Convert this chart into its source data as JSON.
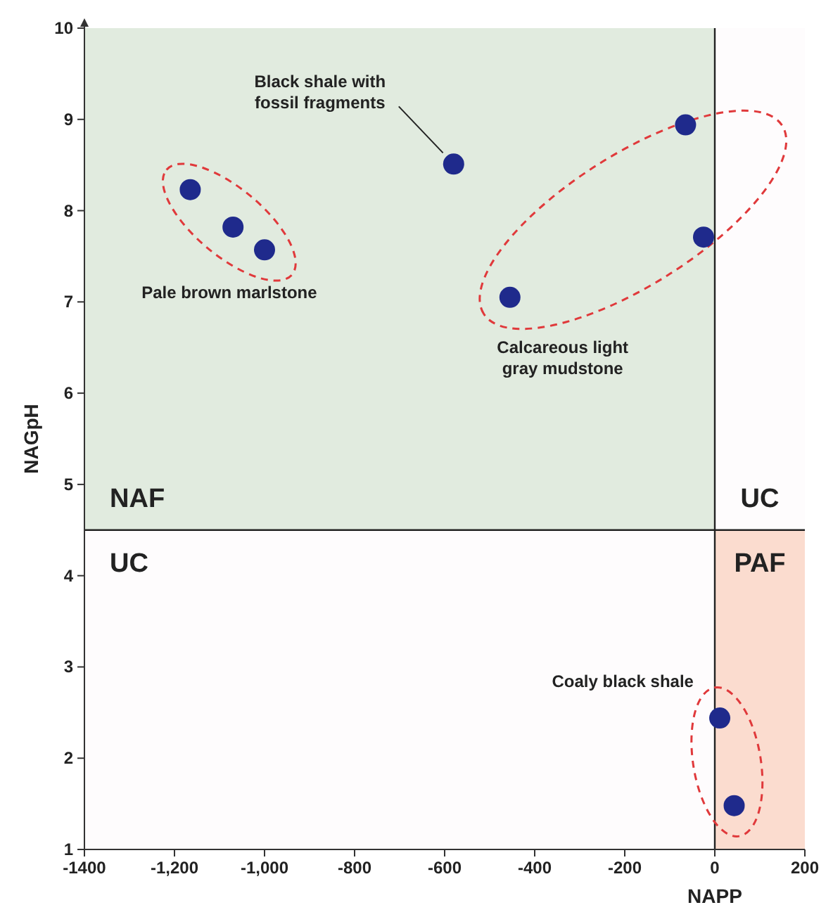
{
  "chart_data": {
    "type": "scatter",
    "xlabel": "NAPP",
    "ylabel": "NAGpH",
    "xlim": [
      -1400,
      200
    ],
    "ylim": [
      1,
      10
    ],
    "xticks": [
      -1400,
      {
        "value": -1200,
        "label": "-1,200"
      },
      {
        "value": -1000,
        "label": "-1,000"
      },
      -800,
      -600,
      -400,
      -200,
      0,
      200
    ],
    "yticks": [
      1,
      2,
      3,
      4,
      5,
      6,
      7,
      8,
      9,
      10
    ],
    "marker": "circle",
    "grid": false,
    "series": [
      {
        "name": "Pale brown marlstone",
        "color": "#1f2a8c",
        "x": [
          -1165,
          -1070,
          -1000
        ],
        "values": [
          8.23,
          7.82,
          7.57
        ]
      },
      {
        "name": "Black shale with\nfossil fragments",
        "color": "#1f2a8c",
        "x": [
          -580
        ],
        "values": [
          8.51
        ]
      },
      {
        "name": "Calcareous light\ngray mudstone",
        "color": "#1f2a8c",
        "x": [
          -455,
          -65,
          -25
        ],
        "values": [
          7.05,
          8.94,
          7.71
        ]
      },
      {
        "name": "Coaly black shale",
        "color": "#1f2a8c",
        "x": [
          11,
          43
        ],
        "values": [
          2.44,
          1.48
        ]
      }
    ],
    "ref_lines": [
      {
        "axis": "x",
        "value": 0,
        "color": "#222222"
      },
      {
        "axis": "y",
        "value": 4.5,
        "color": "#222222"
      }
    ],
    "bands": [
      {
        "axis": "y",
        "from": 4.5,
        "to": 10,
        "color": "#e1ebdf"
      },
      {
        "axis": "x",
        "from": 0,
        "to": 200,
        "color": "#fbdccf"
      }
    ],
    "annotations": [
      "NAF",
      "UC",
      "UC",
      "PAF"
    ]
  }
}
